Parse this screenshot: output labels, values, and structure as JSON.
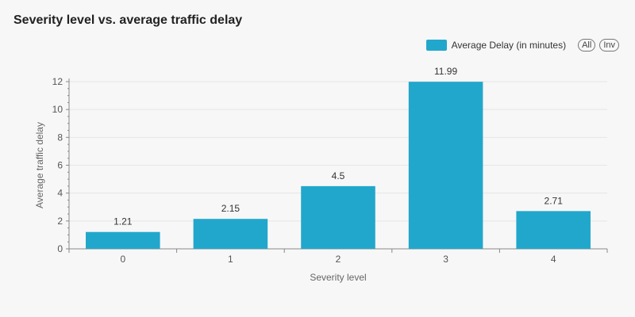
{
  "colors": {
    "bar": "#22a7cc",
    "grid": "#e6e6e6",
    "axis": "#888888"
  },
  "legend": {
    "all_label": "All",
    "inv_label": "Inv"
  },
  "chart_data": {
    "type": "bar",
    "title": "Severity level vs. average traffic delay",
    "xlabel": "Severity level",
    "ylabel": "Average traffic delay",
    "categories": [
      "0",
      "1",
      "2",
      "3",
      "4"
    ],
    "series": [
      {
        "name": "Average Delay (in minutes)",
        "values": [
          1.21,
          2.15,
          4.5,
          11.99,
          2.71
        ]
      }
    ],
    "data_labels": [
      "1.21",
      "2.15",
      "4.5",
      "11.99",
      "2.71"
    ],
    "ylim": [
      0,
      12
    ],
    "yticks": [
      0,
      2,
      4,
      6,
      8,
      10,
      12
    ],
    "grid": true,
    "legend_position": "top-right"
  }
}
